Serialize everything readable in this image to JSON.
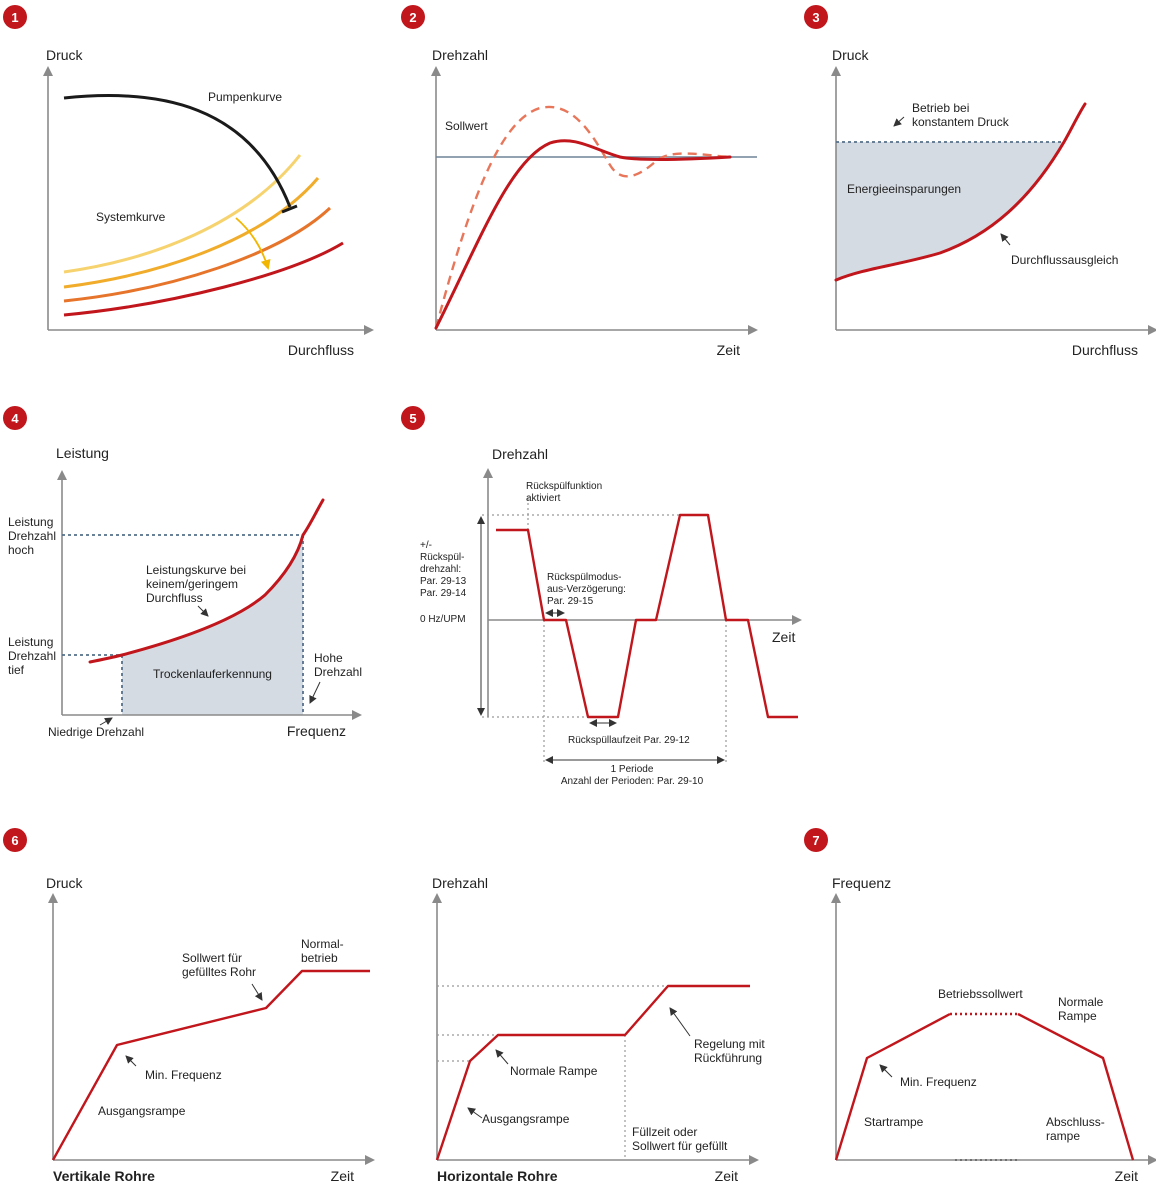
{
  "badges": [
    "1",
    "2",
    "3",
    "4",
    "5",
    "6",
    "7"
  ],
  "colors": {
    "curve": "#c0161c",
    "axis": "#8a8a8a",
    "area": "#d5dbe2",
    "badge": "#c0161c"
  },
  "p1": {
    "ylabel": "Druck",
    "xlabel": "Durchfluss",
    "pump": "Pumpenkurve",
    "system": "Systemkurve"
  },
  "p2": {
    "ylabel": "Drehzahl",
    "xlabel": "Zeit",
    "setpoint": "Sollwert"
  },
  "p3": {
    "ylabel": "Druck",
    "xlabel": "Durchfluss",
    "const1": "Betrieb bei",
    "const2": "konstantem Druck",
    "savings": "Energieeinsparungen",
    "flowcomp": "Durchflussausgleich"
  },
  "p4": {
    "ylabel": "Leistung",
    "xlabel": "Frequenz",
    "hi1": "Leistung",
    "hi2": "Drehzahl",
    "hi3": "hoch",
    "lo1": "Leistung",
    "lo2": "Drehzahl",
    "lo3": "tief",
    "curve1": "Leistungskurve bei",
    "curve2": "keinem/geringem",
    "curve3": "Durchfluss",
    "dry": "Trockenlauferkennung",
    "high1": "Hohe",
    "high2": "Drehzahl",
    "low": "Niedrige Drehzahl"
  },
  "p5": {
    "ylabel": "Drehzahl",
    "xlabel": "Zeit",
    "act1": "Rückspülfunktion",
    "act2": "aktiviert",
    "sp1": "+/-",
    "sp2": "Rückspül-",
    "sp3": "drehzahl:",
    "sp4": "Par. 29-13",
    "sp5": "Par. 29-14",
    "zero": "0 Hz/UPM",
    "del1": "Rückspülmodus-",
    "del2": "aus-Verzögerung:",
    "del3": "Par. 29-15",
    "run": "Rückspüllaufzeit Par. 29-12",
    "period": "1 Periode",
    "count": "Anzahl der Perioden: Par. 29-10"
  },
  "p6a": {
    "ylabel": "Druck",
    "xlabel": "Zeit",
    "title": "Vertikale Rohre",
    "normal1": "Normal-",
    "normal2": "betrieb",
    "sp1": "Sollwert für",
    "sp2": "gefülltes Rohr",
    "minf": "Min. Frequenz",
    "ramp": "Ausgangsrampe"
  },
  "p6b": {
    "ylabel": "Drehzahl",
    "xlabel": "Zeit",
    "title": "Horizontale Rohre",
    "ctl1": "Regelung mit",
    "ctl2": "Rückführung",
    "normal": "Normale Rampe",
    "ramp": "Ausgangsrampe",
    "fill1": "Füllzeit oder",
    "fill2": "Sollwert für gefüllt"
  },
  "p7": {
    "ylabel": "Frequenz",
    "xlabel": "Zeit",
    "setpoint": "Betriebssollwert",
    "nr1": "Normale",
    "nr2": "Rampe",
    "minf": "Min. Frequenz",
    "start": "Startrampe",
    "end1": "Abschluss-",
    "end2": "rampe"
  }
}
